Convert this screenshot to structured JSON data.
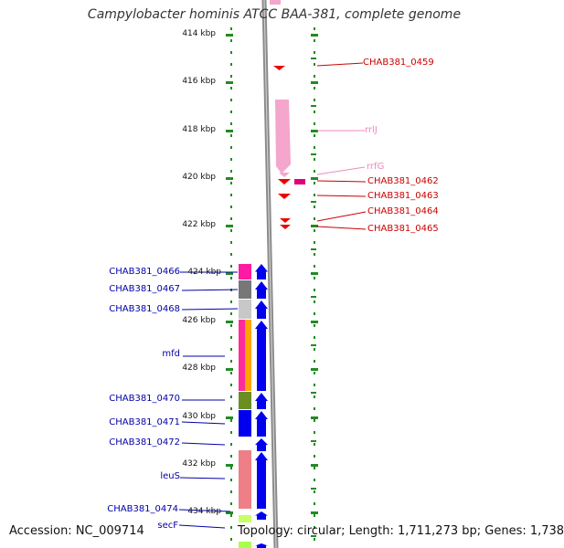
{
  "title": "Campylobacter hominis ATCC BAA-381, complete genome",
  "footer": {
    "accession": "Accession: NC_009714",
    "info": "Topology: circular; Length: 1,711,273 bp; Genes: 1,738"
  },
  "axis_ticks": [
    "414 kbp",
    "416 kbp",
    "418 kbp",
    "420 kbp",
    "422 kbp",
    "424 kbp",
    "426 kbp",
    "428 kbp",
    "430 kbp",
    "432 kbp",
    "434 kbp"
  ],
  "colors": {
    "forward_label": "#cc0000",
    "rna_label": "#ee88bb",
    "reverse_label": "#0000aa",
    "cds_arrow": "#0000ee",
    "gene_red": "#ee0000",
    "rna_pink": "#f4a6cc",
    "tick_green": "#228B22"
  },
  "labels_right": [
    {
      "text": "CHAB381_0459",
      "kind": "forward"
    },
    {
      "text": "rrlJ",
      "kind": "rna"
    },
    {
      "text": "rrfG",
      "kind": "rna"
    },
    {
      "text": "CHAB381_0462",
      "kind": "forward"
    },
    {
      "text": "CHAB381_0463",
      "kind": "forward"
    },
    {
      "text": "CHAB381_0464",
      "kind": "forward"
    },
    {
      "text": "CHAB381_0465",
      "kind": "forward"
    }
  ],
  "labels_left": [
    {
      "text": "CHAB381_0466"
    },
    {
      "text": "CHAB381_0467"
    },
    {
      "text": "CHAB381_0468"
    },
    {
      "text": "mfd"
    },
    {
      "text": "CHAB381_0470"
    },
    {
      "text": "CHAB381_0471"
    },
    {
      "text": "CHAB381_0472"
    },
    {
      "text": "leuS"
    },
    {
      "text": "CHAB381_0474"
    },
    {
      "text": "secF"
    }
  ]
}
